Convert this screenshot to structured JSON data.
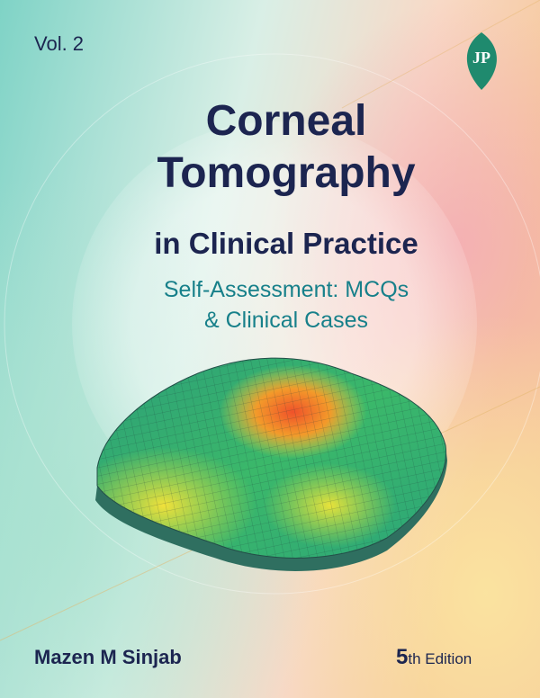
{
  "volume": "Vol. 2",
  "publisher_logo": "JP",
  "title": {
    "lines": [
      "Corneal",
      "Tomography",
      "in Clinical Practice"
    ]
  },
  "subtitle": {
    "lines": [
      "Self-Assessment: MCQs",
      "& Clinical Cases"
    ]
  },
  "author": "Mazen M Sinjab",
  "edition": {
    "number": "5",
    "suffix": "th Edition"
  }
}
